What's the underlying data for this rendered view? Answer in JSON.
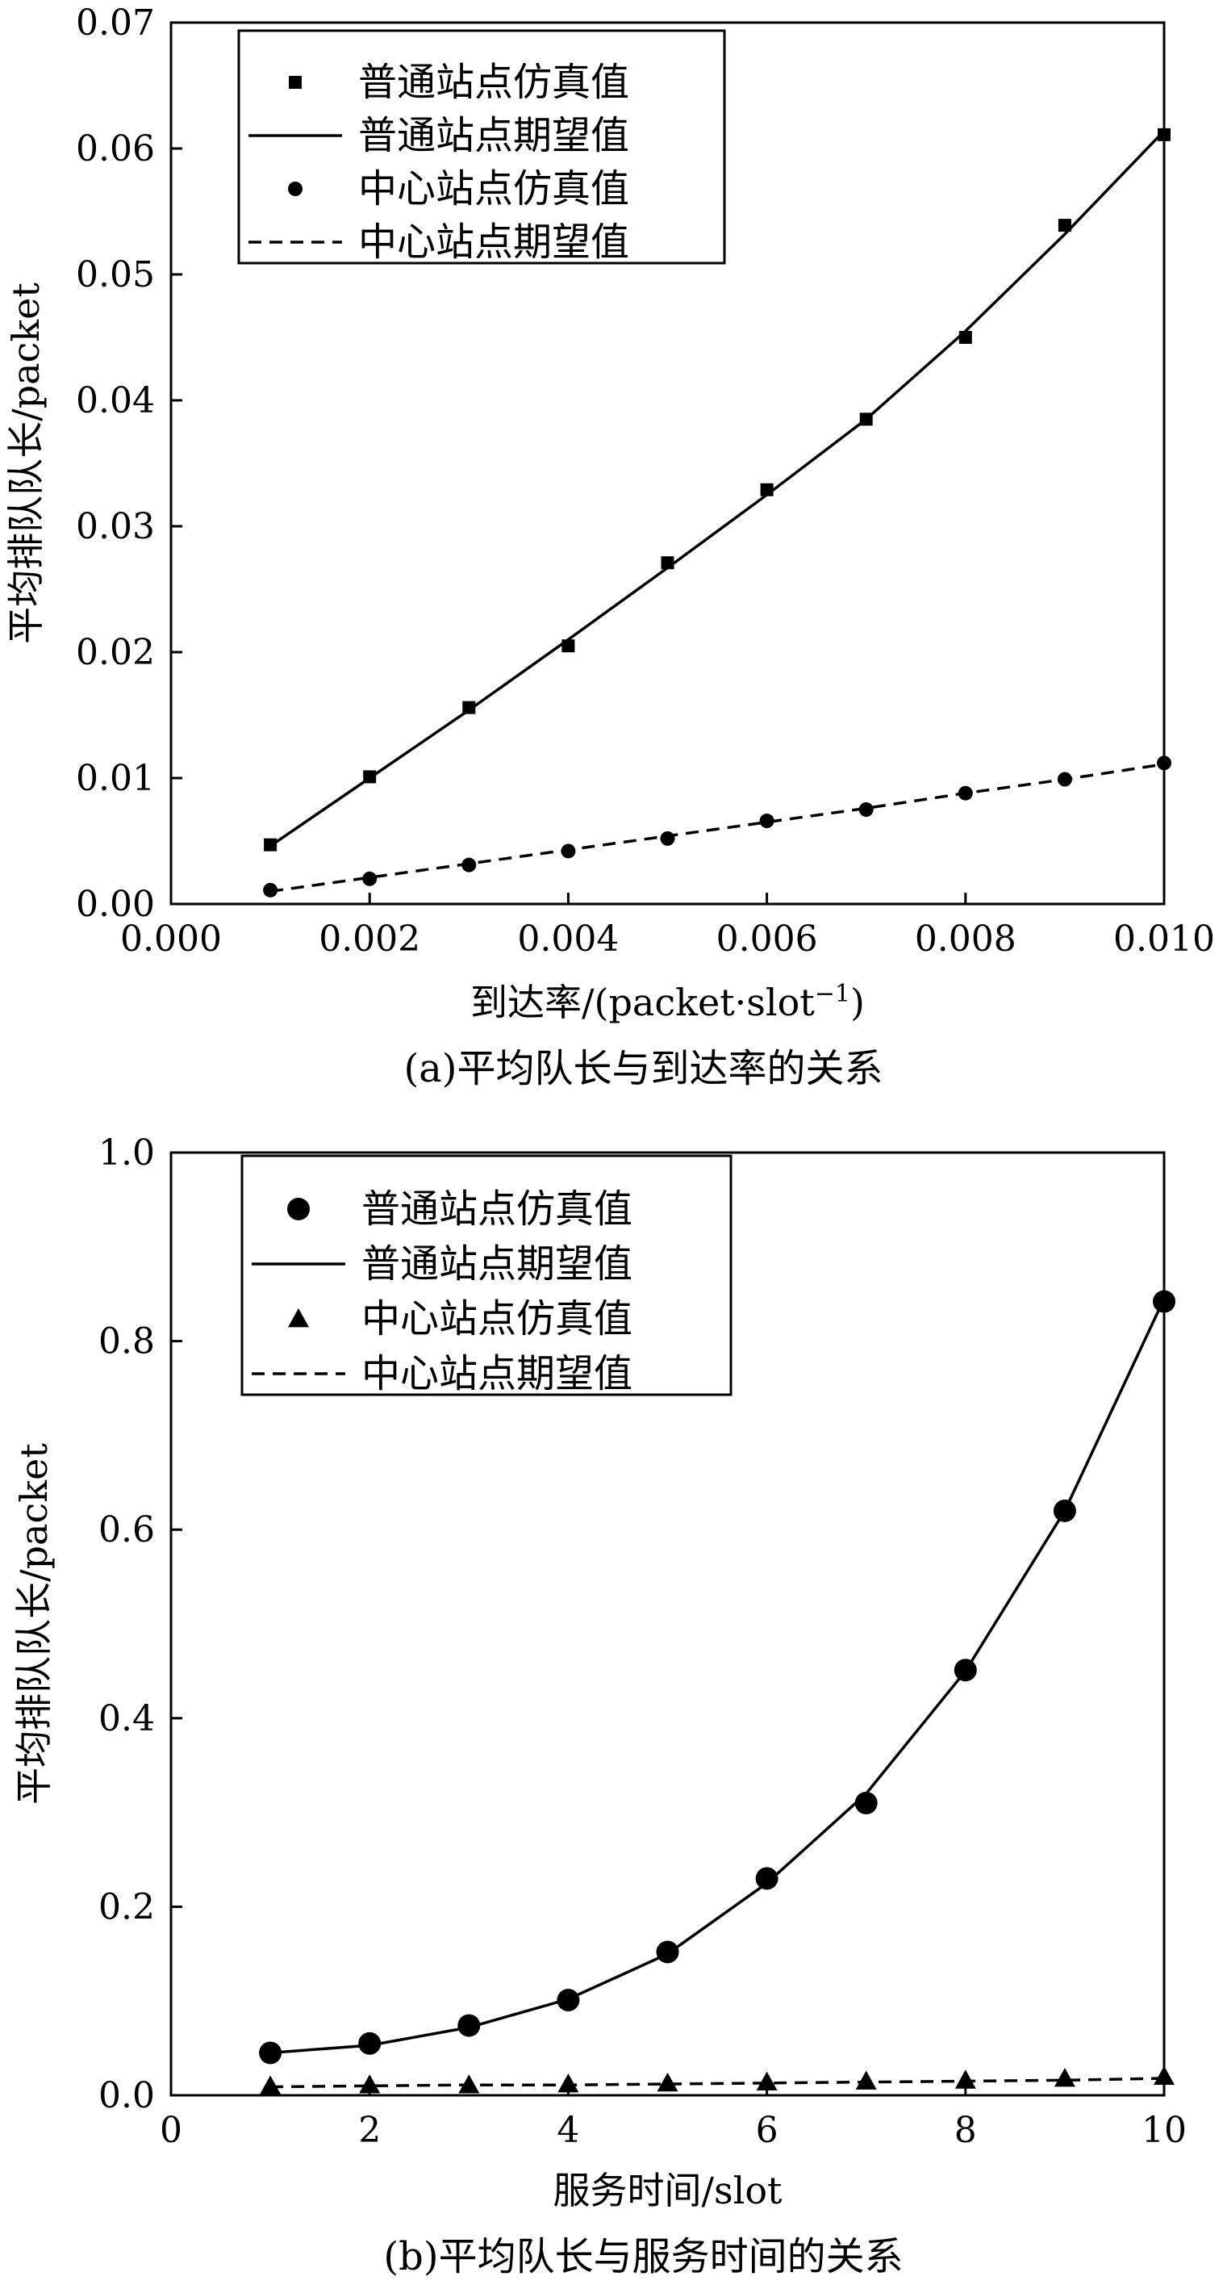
{
  "chart_data": [
    {
      "id": "a",
      "type": "line",
      "caption": "(a)平均队长与到达率的关系",
      "xlabel": "到达率/(packet·slot",
      "xlabel_sup": "−1",
      "xlabel_tail": ")",
      "ylabel": "平均排队队长/packet",
      "xlim": [
        0.0,
        0.01
      ],
      "ylim": [
        0.0,
        0.07
      ],
      "x_ticks": [
        "0.000",
        "0.002",
        "0.004",
        "0.006",
        "0.008",
        "0.010"
      ],
      "y_ticks": [
        "0.00",
        "0.01",
        "0.02",
        "0.03",
        "0.04",
        "0.05",
        "0.06",
        "0.07"
      ],
      "legend_position": "top-left",
      "series": [
        {
          "name": "普通站点仿真值",
          "style": "square-markers",
          "x": [
            0.001,
            0.002,
            0.003,
            0.004,
            0.005,
            0.006,
            0.007,
            0.008,
            0.009,
            0.01
          ],
          "y": [
            0.0047,
            0.0101,
            0.0156,
            0.0205,
            0.0271,
            0.0329,
            0.0385,
            0.045,
            0.0539,
            0.0611
          ]
        },
        {
          "name": "普通站点期望值",
          "style": "solid-line",
          "x": [
            0.001,
            0.002,
            0.003,
            0.004,
            0.005,
            0.006,
            0.007,
            0.008,
            0.009,
            0.01
          ],
          "y": [
            0.0046,
            0.01,
            0.0154,
            0.021,
            0.0267,
            0.0325,
            0.0385,
            0.0455,
            0.0532,
            0.0614
          ]
        },
        {
          "name": "中心站点仿真值",
          "style": "circle-markers",
          "x": [
            0.001,
            0.002,
            0.003,
            0.004,
            0.005,
            0.006,
            0.007,
            0.008,
            0.009,
            0.01
          ],
          "y": [
            0.0011,
            0.002,
            0.0031,
            0.0042,
            0.0052,
            0.0066,
            0.0075,
            0.0088,
            0.0099,
            0.0112
          ]
        },
        {
          "name": "中心站点期望值",
          "style": "dashed-line",
          "x": [
            0.001,
            0.002,
            0.003,
            0.004,
            0.005,
            0.006,
            0.007,
            0.008,
            0.009,
            0.01
          ],
          "y": [
            0.001,
            0.0021,
            0.0032,
            0.0043,
            0.0054,
            0.0065,
            0.0076,
            0.0088,
            0.0099,
            0.0111
          ]
        }
      ]
    },
    {
      "id": "b",
      "type": "line",
      "caption": "(b)平均队长与服务时间的关系",
      "xlabel": "服务时间/slot",
      "ylabel": "平均排队队长/packet",
      "xlim": [
        0,
        10
      ],
      "ylim": [
        0.0,
        1.0
      ],
      "x_ticks": [
        "0",
        "2",
        "4",
        "6",
        "8",
        "10"
      ],
      "y_ticks": [
        "0.0",
        "0.2",
        "0.4",
        "0.6",
        "0.8",
        "1.0"
      ],
      "legend_position": "top-left",
      "series": [
        {
          "name": "普通站点仿真值",
          "style": "circle-markers",
          "x": [
            1,
            2,
            3,
            4,
            5,
            6,
            7,
            8,
            9,
            10
          ],
          "y": [
            0.045,
            0.055,
            0.074,
            0.101,
            0.152,
            0.23,
            0.31,
            0.451,
            0.62,
            0.842
          ]
        },
        {
          "name": "普通站点期望值",
          "style": "solid-line",
          "x": [
            1,
            2,
            3,
            4,
            5,
            6,
            7,
            8,
            9,
            10
          ],
          "y": [
            0.045,
            0.053,
            0.072,
            0.102,
            0.15,
            0.225,
            0.32,
            0.45,
            0.62,
            0.845
          ]
        },
        {
          "name": "中心站点仿真值",
          "style": "triangle-markers",
          "x": [
            1,
            2,
            3,
            4,
            5,
            6,
            7,
            8,
            9,
            10
          ],
          "y": [
            0.01,
            0.011,
            0.011,
            0.012,
            0.013,
            0.014,
            0.015,
            0.016,
            0.018,
            0.02
          ]
        },
        {
          "name": "中心站点期望值",
          "style": "dashed-line",
          "x": [
            1,
            2,
            3,
            4,
            5,
            6,
            7,
            8,
            9,
            10
          ],
          "y": [
            0.009,
            0.01,
            0.011,
            0.011,
            0.012,
            0.013,
            0.014,
            0.015,
            0.016,
            0.018
          ]
        }
      ]
    }
  ]
}
